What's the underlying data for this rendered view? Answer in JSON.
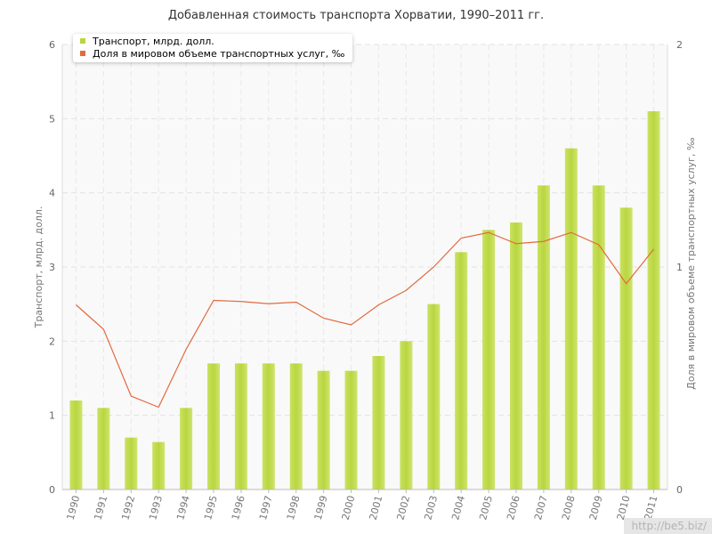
{
  "chart_data": {
    "type": "bar",
    "title": "Добавленная стоимость транспорта Хорватии, 1990–2011 гг.",
    "categories": [
      "1990",
      "1991",
      "1992",
      "1993",
      "1994",
      "1995",
      "1996",
      "1997",
      "1998",
      "1999",
      "2000",
      "2001",
      "2002",
      "2003",
      "2004",
      "2005",
      "2006",
      "2007",
      "2008",
      "2009",
      "2010",
      "2011"
    ],
    "series": [
      {
        "name": "Транспорт, млрд. долл.",
        "type": "bar",
        "axis": "left",
        "color": "#b8d63e",
        "values": [
          1.2,
          1.1,
          0.7,
          0.64,
          1.1,
          1.7,
          1.7,
          1.7,
          1.7,
          1.6,
          1.6,
          1.8,
          2.0,
          2.5,
          3.2,
          3.5,
          3.6,
          4.1,
          4.6,
          4.1,
          3.8,
          5.1
        ]
      },
      {
        "name": "Доля в мировом объеме транспортных услуг, ‰",
        "type": "line",
        "axis": "right",
        "color": "#e26a3e",
        "values": [
          0.83,
          0.72,
          0.42,
          0.37,
          0.63,
          0.85,
          0.845,
          0.835,
          0.842,
          0.77,
          0.74,
          0.83,
          0.895,
          1.0,
          1.13,
          1.155,
          1.105,
          1.115,
          1.155,
          1.1,
          0.925,
          1.08
        ]
      }
    ],
    "ylabel": "Транспорт, млрд. долл.",
    "y2label": "Доля в мировом объеме транспортных услуг, ‰",
    "ylim": [
      0,
      6
    ],
    "y2lim": [
      0,
      2
    ],
    "yticks": [
      "0",
      "1",
      "2",
      "3",
      "4",
      "5",
      "6"
    ],
    "y2ticks": [
      "0",
      "1",
      "2"
    ],
    "grid": true,
    "legend_position": "top-left"
  },
  "watermark": "http://be5.biz/"
}
